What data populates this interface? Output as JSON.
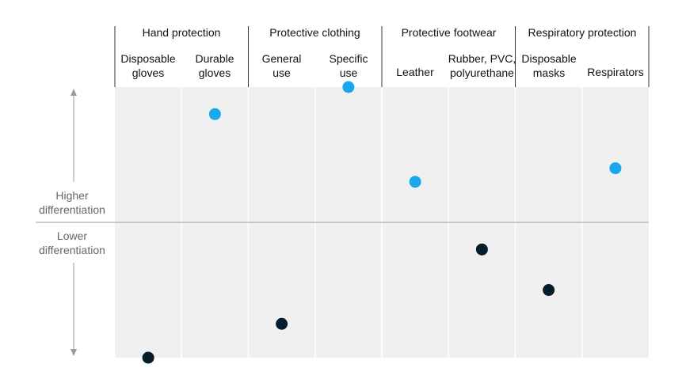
{
  "chart_data": {
    "type": "scatter",
    "title": "",
    "ylabel_high": "Higher\ndifferentiation",
    "ylabel_low": "Lower\ndifferentiation",
    "ylim": [
      -1,
      1
    ],
    "midline": 0,
    "groups": [
      {
        "name": "Hand protection",
        "categories": [
          "Disposable\ngloves",
          "Durable\ngloves"
        ]
      },
      {
        "name": "Protective clothing",
        "categories": [
          "General\nuse",
          "Specific\nuse"
        ]
      },
      {
        "name": "Protective footwear",
        "categories": [
          "Leather",
          "Rubber, PVC,\npolyurethane"
        ]
      },
      {
        "name": "Respiratory protection",
        "categories": [
          "Disposable\nmasks",
          "Respirators"
        ]
      }
    ],
    "points": [
      {
        "category": "Disposable gloves",
        "value": -1.0,
        "level": "low"
      },
      {
        "category": "Durable gloves",
        "value": 0.8,
        "level": "high"
      },
      {
        "category": "General use",
        "value": -0.75,
        "level": "low"
      },
      {
        "category": "Specific use",
        "value": 1.0,
        "level": "high"
      },
      {
        "category": "Leather",
        "value": 0.3,
        "level": "high"
      },
      {
        "category": "Rubber, PVC, polyurethane",
        "value": -0.2,
        "level": "low"
      },
      {
        "category": "Disposable masks",
        "value": -0.5,
        "level": "low"
      },
      {
        "category": "Respirators",
        "value": 0.4,
        "level": "high"
      }
    ],
    "colors": {
      "high": "#1aa7ec",
      "low": "#051c2c",
      "panel": "#f0f0f0",
      "axis": "#999999"
    }
  }
}
